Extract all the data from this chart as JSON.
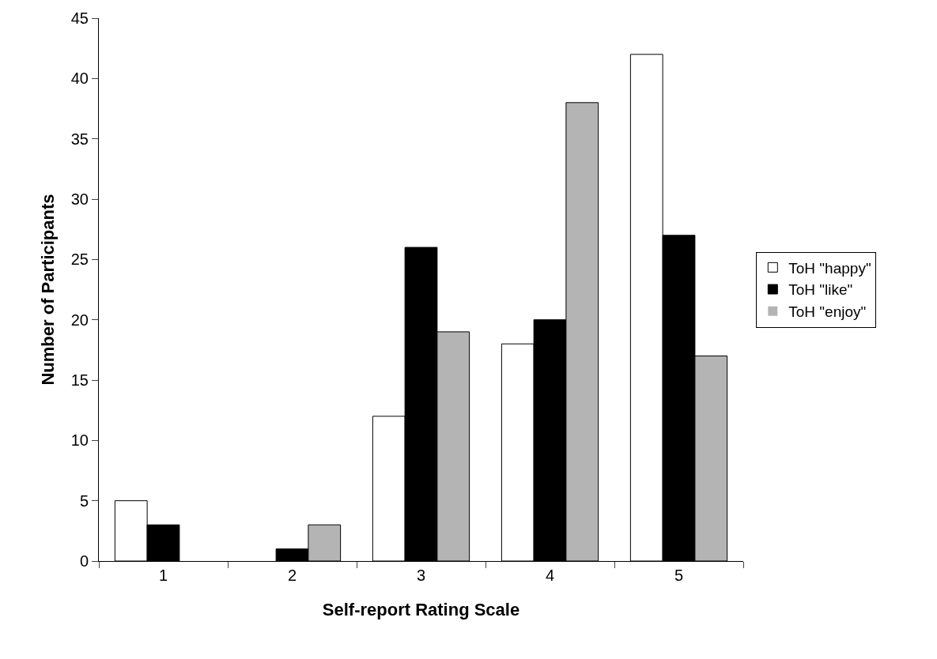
{
  "chart_data": {
    "type": "bar",
    "xlabel": "Self-report Rating Scale",
    "ylabel": "Number of Participants",
    "categories": [
      "1",
      "2",
      "3",
      "4",
      "5"
    ],
    "series": [
      {
        "name": "ToH \"happy\"",
        "color": "#ffffff",
        "values": [
          5,
          0,
          12,
          18,
          42
        ]
      },
      {
        "name": "ToH \"like\"",
        "color": "#000000",
        "values": [
          3,
          1,
          26,
          20,
          27
        ]
      },
      {
        "name": "ToH \"enjoy\"",
        "color": "#b4b4b4",
        "values": [
          0,
          3,
          19,
          38,
          17
        ]
      }
    ],
    "ylim": [
      0,
      45
    ],
    "yticks": [
      0,
      5,
      10,
      15,
      20,
      25,
      30,
      35,
      40,
      45
    ],
    "legend": "right"
  }
}
